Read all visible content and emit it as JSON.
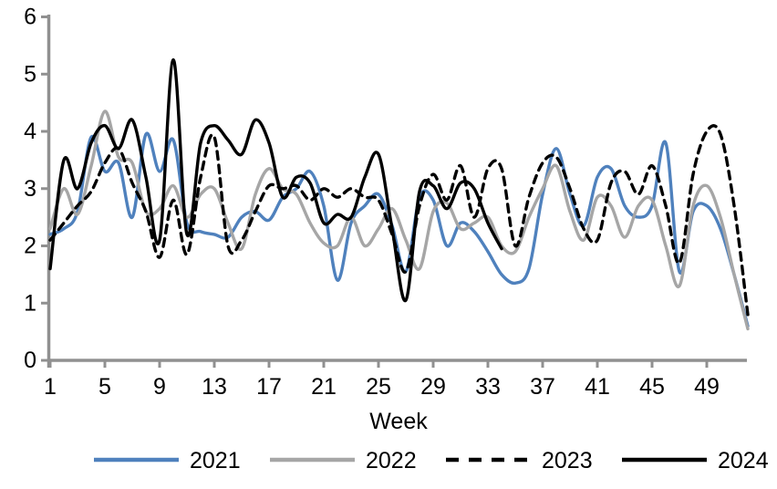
{
  "chart_data": {
    "type": "line",
    "title": "",
    "xlabel": "Week",
    "ylabel": "",
    "x_tick_labels": [
      1,
      5,
      9,
      13,
      17,
      21,
      25,
      29,
      33,
      37,
      41,
      45,
      49
    ],
    "y_tick_labels": [
      0,
      1,
      2,
      3,
      4,
      5,
      6
    ],
    "xlim": [
      1,
      52
    ],
    "ylim": [
      0,
      6
    ],
    "grid": false,
    "legend_position": "bottom",
    "weeks": [
      1,
      2,
      3,
      4,
      5,
      6,
      7,
      8,
      9,
      10,
      11,
      12,
      13,
      14,
      15,
      16,
      17,
      18,
      19,
      20,
      21,
      22,
      23,
      24,
      25,
      26,
      27,
      28,
      29,
      30,
      31,
      32,
      33,
      34,
      35,
      36,
      37,
      38,
      39,
      40,
      41,
      42,
      43,
      44,
      45,
      46,
      47,
      48,
      49,
      50,
      51,
      52
    ],
    "series": [
      {
        "name": "2021",
        "color": "#4F81BD",
        "style": "solid",
        "values": [
          2.2,
          2.3,
          2.6,
          3.9,
          3.3,
          3.45,
          2.5,
          3.95,
          3.3,
          3.85,
          2.4,
          2.25,
          2.2,
          2.15,
          2.5,
          2.6,
          2.45,
          2.85,
          3.0,
          3.3,
          2.7,
          1.4,
          2.4,
          2.7,
          2.9,
          2.35,
          1.55,
          2.85,
          2.8,
          2.0,
          2.4,
          2.25,
          1.9,
          1.5,
          1.35,
          1.6,
          2.9,
          3.7,
          2.9,
          2.35,
          3.2,
          3.35,
          2.7,
          2.5,
          2.7,
          3.8,
          1.55,
          2.6,
          2.7,
          2.3,
          1.5,
          0.6
        ]
      },
      {
        "name": "2022",
        "color": "#A6A6A6",
        "style": "solid",
        "values": [
          2.3,
          3.0,
          2.55,
          3.4,
          4.35,
          3.55,
          3.45,
          2.6,
          2.65,
          3.05,
          2.5,
          2.9,
          3.0,
          2.4,
          1.95,
          2.9,
          3.35,
          3.0,
          2.9,
          2.4,
          2.05,
          2.0,
          2.5,
          2.0,
          2.3,
          2.65,
          2.1,
          1.6,
          2.6,
          2.75,
          2.3,
          2.4,
          2.5,
          2.0,
          1.9,
          2.5,
          3.0,
          3.4,
          2.6,
          2.1,
          2.85,
          2.7,
          2.15,
          2.7,
          2.8,
          2.0,
          1.3,
          2.7,
          3.05,
          2.5,
          1.5,
          0.55
        ]
      },
      {
        "name": "2023",
        "color": "#000000",
        "style": "dashed",
        "values": [
          2.1,
          2.4,
          2.7,
          2.95,
          3.45,
          3.7,
          3.1,
          2.6,
          1.8,
          2.8,
          1.85,
          3.2,
          3.9,
          2.0,
          2.1,
          2.6,
          3.05,
          3.0,
          3.05,
          2.8,
          3.0,
          2.85,
          3.0,
          2.85,
          2.8,
          2.2,
          1.55,
          2.7,
          3.25,
          2.8,
          3.4,
          2.5,
          3.35,
          3.35,
          2.0,
          2.85,
          3.45,
          3.55,
          3.0,
          2.3,
          2.1,
          3.1,
          3.3,
          2.9,
          3.4,
          2.7,
          1.7,
          3.25,
          4.0,
          3.95,
          2.7,
          0.8
        ]
      },
      {
        "name": "2024",
        "color": "#000000",
        "style": "solid",
        "values": [
          1.6,
          3.5,
          3.0,
          3.8,
          4.1,
          3.7,
          4.2,
          3.2,
          2.1,
          5.25,
          2.2,
          3.8,
          4.1,
          3.85,
          3.6,
          4.2,
          3.8,
          2.85,
          3.2,
          3.1,
          2.4,
          2.55,
          2.5,
          3.2,
          3.6,
          2.3,
          1.05,
          2.95,
          3.05,
          2.65,
          3.1,
          3.0,
          2.4,
          1.95
        ]
      }
    ]
  },
  "colors": {
    "axis": "#909090",
    "text": "#000000",
    "background": "#FFFFFF"
  },
  "legend": {
    "items": [
      "2021",
      "2022",
      "2023",
      "2024"
    ]
  }
}
